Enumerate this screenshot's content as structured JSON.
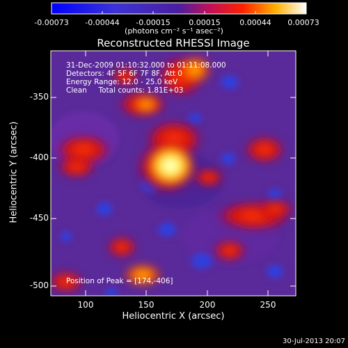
{
  "colorbar": {
    "tick_labels": [
      "-0.00073",
      "-0.00044",
      "-0.00015",
      "0.00015",
      "0.00044",
      "0.00073"
    ],
    "units_label": "(photons cm⁻² s⁻¹ asec⁻²)"
  },
  "title": "Reconstructed RHESSI Image",
  "info": {
    "time_range": "31-Dec-2009 01:10:32.000 to 01:11:08.000",
    "detectors": "Detectors: 4F 5F 6F 7F 8F, Att 0",
    "energy_range": "Energy Range: 12.0 - 25.0 keV",
    "clean_counts": "Clean     Total counts: 1.81E+03",
    "peak_position": "Position of Peak = [174,-406]"
  },
  "x_axis": {
    "label": "Heliocentric X (arcsec)",
    "ticks": [
      "100",
      "150",
      "200",
      "250"
    ],
    "range": [
      73,
      267
    ]
  },
  "y_axis": {
    "label": "Heliocentric Y (arcsec)",
    "ticks": [
      "-350",
      "-400",
      "-450",
      "-500"
    ],
    "range": [
      -505,
      -323
    ]
  },
  "footer_date": "30-Jul-2013 20:07",
  "colors": {
    "background": "#000000",
    "foreground": "#ffffff",
    "negative_min": "#1e3ce0",
    "neutral": "#5a2a9a",
    "positive_mid": "#ff2a00",
    "positive_max": "#ffffe0"
  }
}
